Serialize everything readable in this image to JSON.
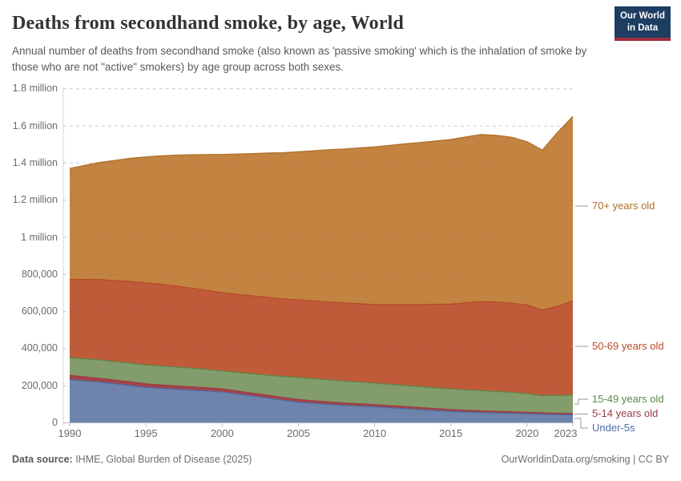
{
  "header": {
    "title": "Deaths from secondhand smoke, by age, World",
    "subtitle": "Annual number of deaths from secondhand smoke (also known as 'passive smoking' which is the inhalation of smoke by those who are not \"active\" smokers) by age group across both sexes.",
    "logo": {
      "line1": "Our World",
      "line2": "in Data",
      "bg_color": "#1d3d63",
      "bar_color": "#a12d3e"
    }
  },
  "chart_data": {
    "type": "area",
    "stacked": true,
    "title": "Deaths from secondhand smoke, by age, World",
    "xlabel": "",
    "ylabel": "",
    "grid": "dashed-horizontal",
    "legend_position": "right",
    "ylim": [
      0,
      1800000
    ],
    "x": [
      1990,
      1991,
      1992,
      1993,
      1994,
      1995,
      1996,
      1997,
      1998,
      1999,
      2000,
      2001,
      2002,
      2003,
      2004,
      2005,
      2006,
      2007,
      2008,
      2009,
      2010,
      2011,
      2012,
      2013,
      2014,
      2015,
      2016,
      2017,
      2018,
      2019,
      2020,
      2021,
      2022,
      2023
    ],
    "series": [
      {
        "name": "Under-5s",
        "fill_color": "#6e84ac",
        "line_color": "#4c6fa5",
        "values": [
          233000,
          226000,
          219000,
          210000,
          201000,
          191000,
          186000,
          181000,
          176000,
          171000,
          166000,
          155000,
          144000,
          133000,
          122000,
          111000,
          105000,
          99000,
          94000,
          90000,
          86000,
          81000,
          76000,
          71000,
          66000,
          61000,
          58000,
          55000,
          53000,
          51000,
          49000,
          46000,
          44000,
          43000
        ]
      },
      {
        "name": "5-14 years old",
        "fill_color": "#a1434b",
        "line_color": "#9c3a45",
        "values": [
          23000,
          22000,
          21000,
          20000,
          20000,
          19000,
          19000,
          18000,
          18000,
          18000,
          17000,
          17000,
          16000,
          16000,
          15000,
          15000,
          14000,
          14000,
          13000,
          13000,
          12000,
          12000,
          12000,
          11000,
          11000,
          11000,
          10000,
          10000,
          9000,
          9000,
          8000,
          8000,
          8000,
          8000
        ]
      },
      {
        "name": "15-49 years old",
        "fill_color": "#839c6b",
        "line_color": "#5d8647",
        "values": [
          95000,
          97000,
          99000,
          100000,
          101000,
          102000,
          102000,
          102000,
          101000,
          99000,
          97000,
          100000,
          104000,
          108000,
          113000,
          119000,
          119000,
          119000,
          118000,
          117000,
          116000,
          115000,
          114000,
          113000,
          112000,
          111000,
          110000,
          109000,
          107000,
          105000,
          100000,
          93000,
          96000,
          100000
        ]
      },
      {
        "name": "50-69 years old",
        "fill_color": "#c05b3a",
        "line_color": "#b54a26",
        "values": [
          423000,
          428000,
          433000,
          437000,
          440000,
          443000,
          440000,
          436000,
          431000,
          426000,
          422000,
          421000,
          420000,
          419000,
          418000,
          418000,
          419000,
          420000,
          421000,
          422000,
          423000,
          429000,
          436000,
          443000,
          450000,
          457000,
          469000,
          480000,
          482000,
          480000,
          478000,
          461000,
          480000,
          506000
        ]
      },
      {
        "name": "70+ years old",
        "fill_color": "#c28440",
        "line_color": "#ae6e29",
        "values": [
          597000,
          615000,
          632000,
          648000,
          664000,
          678000,
          692000,
          706000,
          719000,
          732000,
          744000,
          756000,
          767000,
          778000,
          788000,
          798000,
          809000,
          820000,
          830000,
          840000,
          850000,
          858000,
          866000,
          873000,
          880000,
          887000,
          894000,
          900000,
          898000,
          894000,
          880000,
          862000,
          938000,
          995000
        ]
      }
    ],
    "yticks": [
      {
        "value": 0,
        "label": "0"
      },
      {
        "value": 200000,
        "label": "200,000"
      },
      {
        "value": 400000,
        "label": "400,000"
      },
      {
        "value": 600000,
        "label": "600,000"
      },
      {
        "value": 800000,
        "label": "800,000"
      },
      {
        "value": 1000000,
        "label": "1 million"
      },
      {
        "value": 1200000,
        "label": "1.2 million"
      },
      {
        "value": 1400000,
        "label": "1.4 million"
      },
      {
        "value": 1600000,
        "label": "1.6 million"
      },
      {
        "value": 1800000,
        "label": "1.8 million"
      }
    ],
    "xticks": [
      {
        "value": 1990,
        "label": "1990"
      },
      {
        "value": 1995,
        "label": "1995"
      },
      {
        "value": 2000,
        "label": "2000"
      },
      {
        "value": 2005,
        "label": "2005"
      },
      {
        "value": 2010,
        "label": "2010"
      },
      {
        "value": 2015,
        "label": "2015"
      },
      {
        "value": 2020,
        "label": "2020"
      },
      {
        "value": 2023,
        "label": "2023"
      }
    ],
    "legend_order_top_to_bottom": [
      "70+ years old",
      "50-69 years old",
      "15-49 years old",
      "5-14 years old",
      "Under-5s"
    ]
  },
  "footer": {
    "data_source_label": "Data source:",
    "data_source_value": " IHME, Global Burden of Disease (2025)",
    "credit": "OurWorldinData.org/smoking | CC BY"
  }
}
